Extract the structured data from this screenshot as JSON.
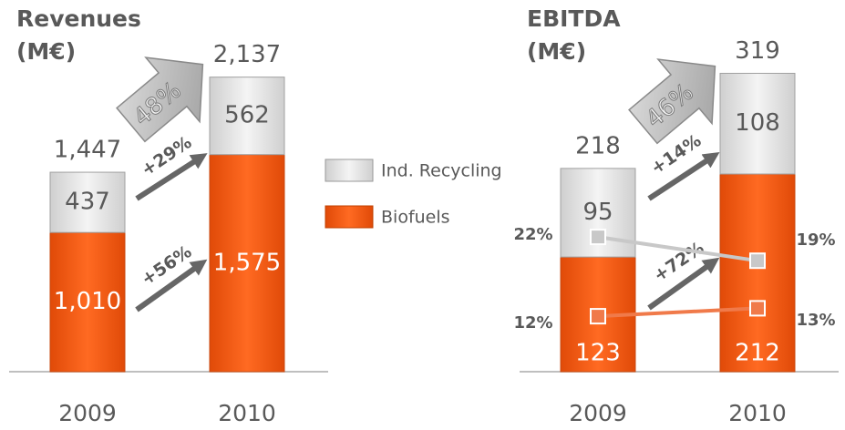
{
  "chart_data": [
    {
      "type": "bar",
      "stacked": true,
      "title": "Revenues",
      "subtitle": "(M€)",
      "categories": [
        "2009",
        "2010"
      ],
      "series": [
        {
          "name": "Biofuels",
          "color": "#f05a14",
          "values": [
            1010,
            1575
          ],
          "value_labels": [
            "1,010",
            "1,575"
          ]
        },
        {
          "name": "Ind. Recycling",
          "color": "#d9d9d9",
          "values": [
            437,
            562
          ]
        }
      ],
      "totals": [
        1447,
        2137
      ],
      "total_labels": [
        "1,447",
        "2,137"
      ],
      "annotations": [
        "48%",
        "+29%",
        "+56%"
      ],
      "ylim": [
        0,
        2300
      ]
    },
    {
      "type": "bar",
      "stacked": true,
      "title": "EBITDA",
      "subtitle": "(M€)",
      "categories": [
        "2009",
        "2010"
      ],
      "series": [
        {
          "name": "Biofuels",
          "color": "#f05a14",
          "values": [
            123,
            212
          ]
        },
        {
          "name": "Ind. Recycling",
          "color": "#d9d9d9",
          "values": [
            95,
            108
          ]
        }
      ],
      "totals": [
        218,
        319
      ],
      "annotations": [
        "46%",
        "+14%",
        "+72%"
      ],
      "margin_series": [
        {
          "color": "#c8c8c8",
          "values": [
            22,
            19
          ],
          "value_labels": [
            "22%",
            "19%"
          ]
        },
        {
          "color": "#f07a4a",
          "values": [
            12,
            13
          ],
          "value_labels": [
            "12%",
            "13%"
          ]
        }
      ],
      "ylim": [
        0,
        340
      ],
      "y2lim": [
        5,
        45
      ]
    }
  ]
}
